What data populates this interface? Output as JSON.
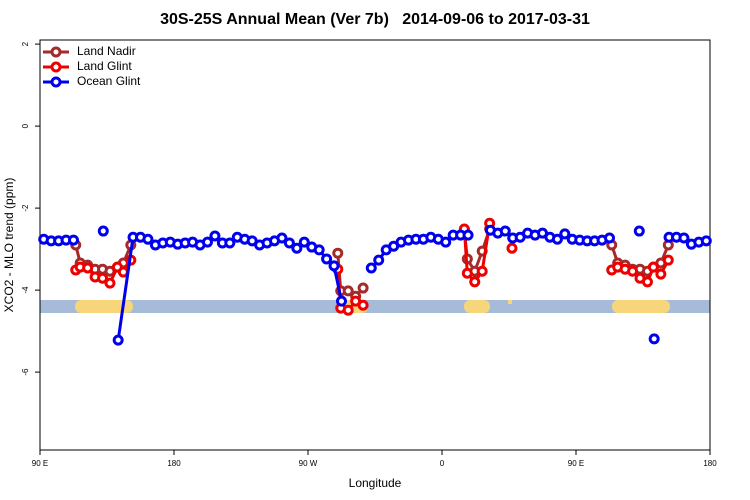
{
  "chart_data": {
    "type": "line",
    "title": "30S-25S Annual Mean (Ver 7b)   2014-09-06 to 2017-03-31",
    "x_label": "Longitude",
    "y_label": "XCO2 - MLO trend (ppm)",
    "xlim": [
      90,
      540
    ],
    "ylim": [
      -7.9,
      2.1
    ],
    "xticks": [
      {
        "value": 90,
        "label": "90 E"
      },
      180,
      {
        "value": 270,
        "label": "90 W"
      },
      {
        "value": 360,
        "label": "0"
      },
      {
        "value": 450,
        "label": "90 E"
      },
      {
        "value": 540,
        "label": "180"
      }
    ],
    "yticks": [
      2,
      0,
      -2,
      -4,
      -6
    ],
    "grid": false,
    "legend": "top-left",
    "series": [
      {
        "name": "Land Nadir",
        "color": "#a52a2a",
        "x": [
          114,
          117,
          122,
          127,
          132,
          137,
          142,
          146,
          151,
          200,
          290,
          292,
          297,
          302,
          307,
          340,
          375,
          377,
          382,
          387,
          392,
          430,
          474,
          478,
          483,
          488,
          493,
          498,
          502,
          507,
          512
        ],
        "values": [
          -2.9,
          -3.34,
          -3.39,
          -3.49,
          -3.49,
          -3.54,
          -3.44,
          -3.34,
          -2.9,
          null,
          -3.1,
          -4.02,
          -4.02,
          -4.15,
          -3.95,
          null,
          -2.54,
          -3.24,
          -3.54,
          -3.05,
          -2.51,
          null,
          -2.9,
          -3.34,
          -3.39,
          -3.49,
          -3.49,
          -3.54,
          -3.44,
          -3.34,
          -2.9
        ]
      },
      {
        "name": "Land Glint",
        "color": "#ee0000",
        "x": [
          114,
          117,
          122,
          127,
          132,
          137,
          142,
          146,
          151,
          200,
          290,
          292,
          297,
          302,
          307,
          340,
          375,
          377,
          382,
          387,
          392,
          400,
          407,
          440,
          474,
          478,
          483,
          488,
          493,
          498,
          502,
          507,
          512
        ],
        "values": [
          -3.51,
          -3.44,
          -3.46,
          -3.68,
          -3.71,
          -3.83,
          -3.44,
          -3.56,
          -3.27,
          null,
          -3.49,
          -4.44,
          -4.49,
          -4.27,
          -4.37,
          null,
          -2.51,
          -3.59,
          -3.8,
          -3.54,
          -2.37,
          null,
          -2.98,
          null,
          -3.51,
          -3.44,
          -3.49,
          -3.54,
          -3.71,
          -3.8,
          -3.44,
          -3.61,
          -3.27
        ]
      },
      {
        "name": "Ocean Glint",
        "color": "#0000ee",
        "x": [
          92.5,
          97.5,
          102.5,
          107.5,
          112.5,
          117.5,
          132.5,
          137.5,
          142.5,
          152.5,
          157.5,
          162.5,
          167.5,
          172.5,
          177.5,
          182.5,
          187.5,
          192.5,
          197.5,
          202.5,
          207.5,
          212.5,
          217.5,
          222.5,
          227.5,
          232.5,
          237.5,
          242.5,
          247.5,
          252.5,
          257.5,
          262.5,
          267.5,
          272.5,
          277.5,
          282.5,
          287.5,
          292.5,
          297.5,
          312.5,
          317.5,
          322.5,
          327.5,
          332.5,
          337.5,
          342.5,
          347.5,
          352.5,
          357.5,
          362.5,
          367.5,
          372.5,
          377.5,
          382.5,
          392.5,
          397.5,
          402.5,
          407.5,
          412.5,
          417.5,
          422.5,
          427.5,
          432.5,
          437.5,
          442.5,
          447.5,
          452.5,
          457.5,
          462.5,
          467.5,
          472.5,
          477.5,
          492.5,
          497.5,
          502.5,
          507.5,
          512.5,
          517.5,
          522.5,
          527.5,
          532.5,
          537.5
        ],
        "values": [
          -2.76,
          -2.8,
          -2.8,
          -2.78,
          -2.78,
          null,
          -2.56,
          null,
          -5.22,
          -2.71,
          -2.71,
          -2.76,
          -2.9,
          -2.85,
          -2.83,
          -2.88,
          -2.85,
          -2.83,
          -2.9,
          -2.83,
          -2.68,
          -2.85,
          -2.85,
          -2.71,
          -2.76,
          -2.8,
          -2.9,
          -2.85,
          -2.8,
          -2.73,
          -2.85,
          -2.98,
          -2.83,
          -2.95,
          -3.02,
          -3.24,
          -3.41,
          -4.27,
          null,
          -3.46,
          -3.27,
          -3.02,
          -2.93,
          -2.83,
          -2.78,
          -2.76,
          -2.76,
          -2.71,
          -2.76,
          -2.83,
          -2.66,
          -2.66,
          -2.66,
          null,
          -2.54,
          -2.61,
          -2.56,
          -2.73,
          -2.71,
          -2.61,
          -2.66,
          -2.61,
          -2.71,
          -2.76,
          -2.63,
          -2.76,
          -2.78,
          -2.8,
          -2.8,
          -2.78,
          -2.73,
          null,
          -2.56,
          null,
          -5.19,
          null,
          -2.71,
          -2.71,
          -2.73,
          -2.88,
          -2.83,
          -2.8
        ]
      }
    ]
  }
}
